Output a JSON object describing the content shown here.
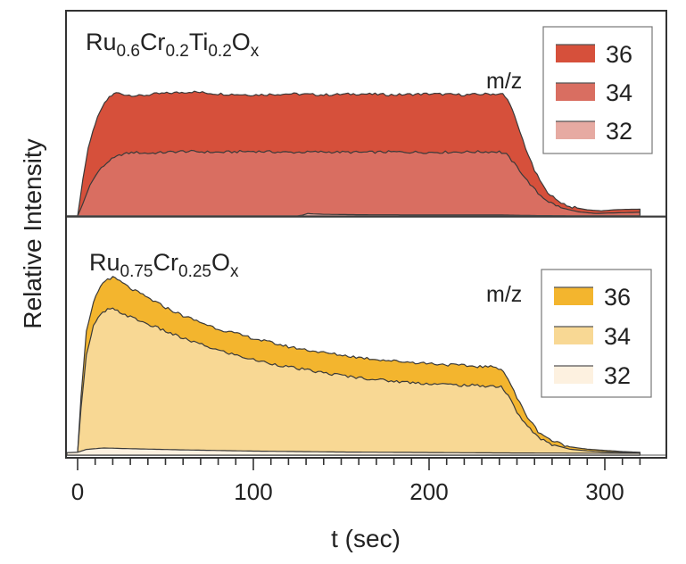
{
  "chart_data": {
    "type": "area",
    "xlabel": "t (sec)",
    "ylabel": "Relative Intensity",
    "xlim": [
      -7,
      320
    ],
    "xticks": [
      0,
      100,
      200,
      300
    ],
    "xtick_labels": [
      "0",
      "100",
      "200",
      "300"
    ],
    "minor_tick_step": 10,
    "grid": false,
    "panels": [
      {
        "title": {
          "base1": "Ru",
          "sub1": "0.6",
          "base2": "Cr",
          "sub2": "0.2",
          "base3": "Ti",
          "sub3": "0.2",
          "base4": "O",
          "sub4": "x"
        },
        "legend_title": "m/z",
        "legend_placement": "top-right",
        "ylim": [
          0,
          1
        ],
        "series": [
          {
            "name": "36",
            "color": "#d6503b",
            "points": [
              [
                -7,
                0
              ],
              [
                0,
                0
              ],
              [
                3,
                0.18
              ],
              [
                6,
                0.33
              ],
              [
                10,
                0.45
              ],
              [
                14,
                0.53
              ],
              [
                18,
                0.58
              ],
              [
                22,
                0.6
              ],
              [
                28,
                0.59
              ],
              [
                35,
                0.585
              ],
              [
                45,
                0.595
              ],
              [
                55,
                0.6
              ],
              [
                65,
                0.605
              ],
              [
                80,
                0.595
              ],
              [
                100,
                0.59
              ],
              [
                120,
                0.595
              ],
              [
                140,
                0.59
              ],
              [
                160,
                0.595
              ],
              [
                180,
                0.59
              ],
              [
                200,
                0.595
              ],
              [
                220,
                0.59
              ],
              [
                235,
                0.595
              ],
              [
                242,
                0.593
              ],
              [
                246,
                0.55
              ],
              [
                250,
                0.45
              ],
              [
                255,
                0.33
              ],
              [
                260,
                0.22
              ],
              [
                266,
                0.13
              ],
              [
                272,
                0.08
              ],
              [
                280,
                0.045
              ],
              [
                290,
                0.03
              ],
              [
                298,
                0.025
              ],
              [
                305,
                0.03
              ],
              [
                312,
                0.032
              ],
              [
                320,
                0.033
              ]
            ]
          },
          {
            "name": "34",
            "color": "#d96e61",
            "points": [
              [
                -7,
                0
              ],
              [
                0,
                0
              ],
              [
                3,
                0.06
              ],
              [
                7,
                0.15
              ],
              [
                12,
                0.22
              ],
              [
                18,
                0.27
              ],
              [
                25,
                0.3
              ],
              [
                32,
                0.31
              ],
              [
                40,
                0.305
              ],
              [
                50,
                0.31
              ],
              [
                60,
                0.315
              ],
              [
                80,
                0.31
              ],
              [
                100,
                0.315
              ],
              [
                120,
                0.31
              ],
              [
                140,
                0.312
              ],
              [
                160,
                0.31
              ],
              [
                180,
                0.312
              ],
              [
                200,
                0.31
              ],
              [
                220,
                0.312
              ],
              [
                240,
                0.313
              ],
              [
                244,
                0.3
              ],
              [
                250,
                0.24
              ],
              [
                256,
                0.17
              ],
              [
                262,
                0.11
              ],
              [
                268,
                0.07
              ],
              [
                275,
                0.04
              ],
              [
                285,
                0.02
              ],
              [
                295,
                0.012
              ],
              [
                305,
                0.015
              ],
              [
                320,
                0.018
              ]
            ]
          },
          {
            "name": "32",
            "color": "#e6aaa2",
            "points": [
              [
                -7,
                0
              ],
              [
                125,
                0
              ],
              [
                128,
                0.004
              ],
              [
                131,
                0.012
              ],
              [
                134,
                0.01
              ],
              [
                140,
                0.008
              ],
              [
                160,
                0.006
              ],
              [
                200,
                0.005
              ],
              [
                240,
                0.005
              ],
              [
                260,
                0.002
              ],
              [
                280,
                0.001
              ],
              [
                320,
                0.001
              ]
            ]
          }
        ]
      },
      {
        "title": {
          "base1": "Ru",
          "sub1": "0.75",
          "base2": "Cr",
          "sub2": "0.25",
          "base4": "O",
          "sub4": "x"
        },
        "legend_title": "m/z",
        "legend_placement": "right",
        "ylim": [
          0,
          1
        ],
        "series": [
          {
            "name": "36",
            "color": "#f3b52e",
            "points": [
              [
                -7,
                0.01
              ],
              [
                0,
                0.01
              ],
              [
                2,
                0.25
              ],
              [
                5,
                0.52
              ],
              [
                9,
                0.64
              ],
              [
                13,
                0.71
              ],
              [
                17,
                0.74
              ],
              [
                20,
                0.745
              ],
              [
                24,
                0.73
              ],
              [
                30,
                0.7
              ],
              [
                40,
                0.66
              ],
              [
                50,
                0.62
              ],
              [
                60,
                0.585
              ],
              [
                80,
                0.53
              ],
              [
                100,
                0.49
              ],
              [
                120,
                0.455
              ],
              [
                140,
                0.43
              ],
              [
                160,
                0.41
              ],
              [
                180,
                0.395
              ],
              [
                200,
                0.385
              ],
              [
                220,
                0.375
              ],
              [
                235,
                0.37
              ],
              [
                241,
                0.365
              ],
              [
                245,
                0.32
              ],
              [
                250,
                0.24
              ],
              [
                256,
                0.16
              ],
              [
                262,
                0.1
              ],
              [
                270,
                0.06
              ],
              [
                280,
                0.035
              ],
              [
                290,
                0.025
              ],
              [
                300,
                0.02
              ],
              [
                310,
                0.015
              ],
              [
                320,
                0.012
              ]
            ]
          },
          {
            "name": "34",
            "color": "#f8d894",
            "points": [
              [
                -7,
                0.01
              ],
              [
                0,
                0.01
              ],
              [
                2,
                0.2
              ],
              [
                5,
                0.42
              ],
              [
                9,
                0.54
              ],
              [
                13,
                0.59
              ],
              [
                17,
                0.61
              ],
              [
                20,
                0.612
              ],
              [
                24,
                0.6
              ],
              [
                30,
                0.58
              ],
              [
                40,
                0.55
              ],
              [
                50,
                0.52
              ],
              [
                60,
                0.49
              ],
              [
                80,
                0.44
              ],
              [
                100,
                0.4
              ],
              [
                120,
                0.37
              ],
              [
                140,
                0.345
              ],
              [
                160,
                0.325
              ],
              [
                180,
                0.31
              ],
              [
                200,
                0.3
              ],
              [
                220,
                0.293
              ],
              [
                235,
                0.29
              ],
              [
                241,
                0.288
              ],
              [
                245,
                0.25
              ],
              [
                250,
                0.18
              ],
              [
                256,
                0.12
              ],
              [
                262,
                0.075
              ],
              [
                270,
                0.045
              ],
              [
                280,
                0.025
              ],
              [
                290,
                0.018
              ],
              [
                300,
                0.014
              ],
              [
                310,
                0.011
              ],
              [
                320,
                0.01
              ]
            ]
          },
          {
            "name": "32",
            "color": "#fdf1e0",
            "points": [
              [
                -7,
                0.01
              ],
              [
                0,
                0.012
              ],
              [
                5,
                0.024
              ],
              [
                15,
                0.03
              ],
              [
                30,
                0.027
              ],
              [
                60,
                0.022
              ],
              [
                100,
                0.017
              ],
              [
                150,
                0.013
              ],
              [
                200,
                0.011
              ],
              [
                250,
                0.009
              ],
              [
                300,
                0.008
              ],
              [
                320,
                0.008
              ]
            ]
          }
        ]
      }
    ]
  }
}
